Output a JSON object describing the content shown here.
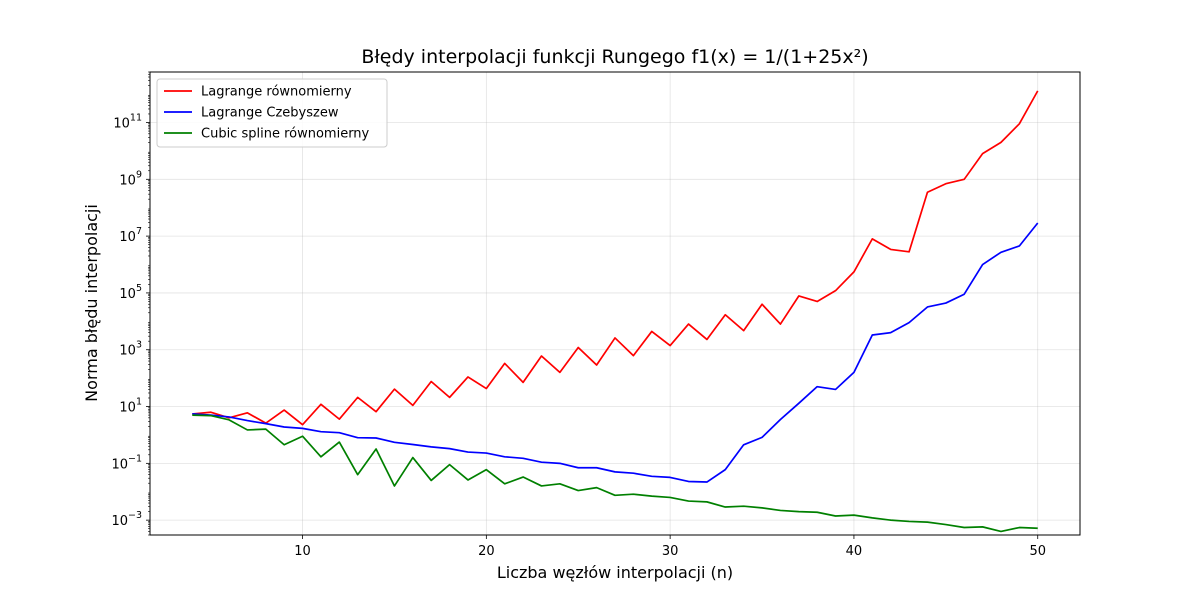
{
  "chart_data": {
    "type": "line",
    "title": "Błędy interpolacji funkcji Rungego f1(x) = 1/(1+25x²)",
    "xlabel": "Liczba węzłów interpolacji (n)",
    "ylabel": "Norma błędu interpolacji",
    "xlim": [
      1.7,
      52.3
    ],
    "ylim": [
      0.0003,
      6000000000000.0
    ],
    "yscale": "log",
    "grid": true,
    "legend_position": "top-left",
    "x_ticks": [
      10,
      20,
      30,
      40,
      50
    ],
    "x_tick_labels": [
      "10",
      "20",
      "30",
      "40",
      "50"
    ],
    "y_ticks": [
      0.001,
      0.1,
      10,
      1000,
      100000,
      10000000,
      1000000000,
      100000000000
    ],
    "y_tick_labels": [
      {
        "base": "10",
        "exp": "−3"
      },
      {
        "base": "10",
        "exp": "−1"
      },
      {
        "base": "10",
        "exp": "1"
      },
      {
        "base": "10",
        "exp": "3"
      },
      {
        "base": "10",
        "exp": "5"
      },
      {
        "base": "10",
        "exp": "7"
      },
      {
        "base": "10",
        "exp": "9"
      },
      {
        "base": "10",
        "exp": "11"
      }
    ],
    "x": [
      4,
      5,
      6,
      7,
      8,
      9,
      10,
      11,
      12,
      13,
      14,
      15,
      16,
      17,
      18,
      19,
      20,
      21,
      22,
      23,
      24,
      25,
      26,
      27,
      28,
      29,
      30,
      31,
      32,
      33,
      34,
      35,
      36,
      37,
      38,
      39,
      40,
      41,
      42,
      43,
      44,
      45,
      46,
      47,
      48,
      49,
      50
    ],
    "series": [
      {
        "name": "Lagrange równomierny",
        "color": "#ff0000",
        "values": [
          5.5,
          6.3,
          4.0,
          6.0,
          2.6,
          7.5,
          2.3,
          12,
          3.6,
          21,
          6.6,
          41,
          11,
          76,
          21,
          110,
          43,
          330,
          71,
          600,
          160,
          1200,
          290,
          2600,
          620,
          4400,
          1400,
          8000,
          2300,
          17000,
          4700,
          40000,
          8000,
          78000,
          50000,
          120000,
          550000,
          8000000,
          3400000,
          2800000,
          350000000,
          700000000,
          1000000000,
          8000000000,
          20000000000,
          90000000000,
          1300000000000
        ]
      },
      {
        "name": "Lagrange Czebyszew",
        "color": "#0000ff",
        "values": [
          5.5,
          5.0,
          4.3,
          3.2,
          2.5,
          1.9,
          1.7,
          1.3,
          1.2,
          0.8,
          0.78,
          0.55,
          0.46,
          0.38,
          0.33,
          0.25,
          0.23,
          0.17,
          0.15,
          0.11,
          0.1,
          0.07,
          0.07,
          0.05,
          0.045,
          0.035,
          0.032,
          0.023,
          0.022,
          0.06,
          0.45,
          0.82,
          3.5,
          13,
          50,
          40,
          160,
          3300,
          4000,
          9000,
          32000,
          44000,
          90000,
          1000000,
          2700000,
          4500000,
          29000000
        ]
      },
      {
        "name": "Cubic spline równomierny",
        "color": "#008000",
        "values": [
          5.0,
          4.8,
          3.4,
          1.5,
          1.6,
          0.45,
          0.9,
          0.17,
          0.56,
          0.04,
          0.32,
          0.016,
          0.16,
          0.025,
          0.09,
          0.026,
          0.06,
          0.019,
          0.033,
          0.016,
          0.019,
          0.011,
          0.014,
          0.0075,
          0.0082,
          0.007,
          0.0063,
          0.0047,
          0.0044,
          0.0029,
          0.0031,
          0.0027,
          0.0022,
          0.002,
          0.0019,
          0.0014,
          0.0015,
          0.0012,
          0.001,
          0.0009,
          0.00085,
          0.0007,
          0.00055,
          0.00058,
          0.0004,
          0.00055,
          0.00052
        ]
      }
    ]
  }
}
